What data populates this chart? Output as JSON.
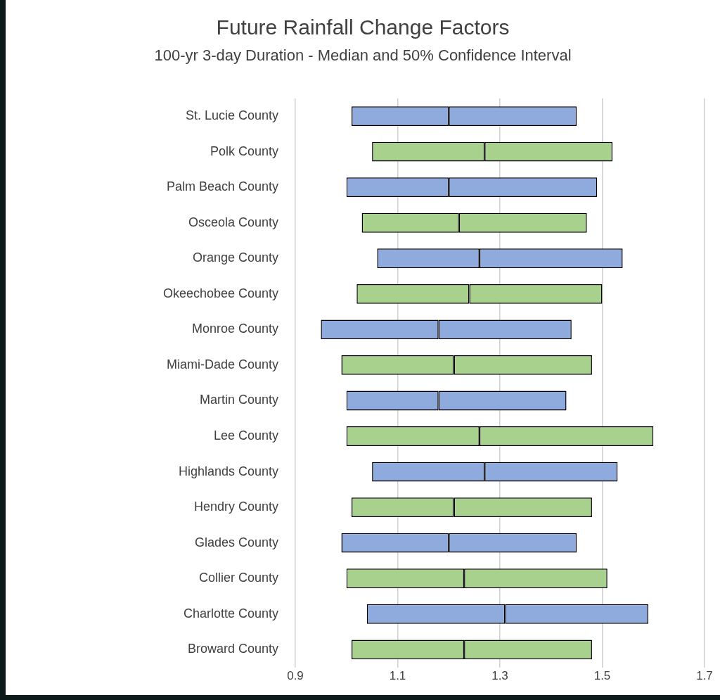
{
  "chart_data": {
    "type": "bar",
    "orientation": "horizontal",
    "title": "Future Rainfall Change Factors",
    "subtitle": "100-yr 3-day Duration - Median and 50% Confidence Interval",
    "categories": [
      "St. Lucie County",
      "Polk County",
      "Palm Beach County",
      "Osceola County",
      "Orange County",
      "Okeechobee County",
      "Monroe County",
      "Miami-Dade County",
      "Martin County",
      "Lee County",
      "Highlands County",
      "Hendry County",
      "Glades County",
      "Collier County",
      "Charlotte County",
      "Broward County"
    ],
    "series": [
      {
        "base": [
          1.01,
          1.05,
          1.0,
          1.03,
          1.06,
          1.02,
          0.95,
          0.99,
          1.0,
          1.0,
          1.05,
          1.01,
          0.99,
          1.0,
          1.04,
          1.01
        ],
        "colors": [
          "#8faadc",
          "#a9d18e",
          "#8faadc",
          "#a9d18e",
          "#8faadc",
          "#a9d18e",
          "#8faadc",
          "#a9d18e",
          "#8faadc",
          "#a9d18e",
          "#8faadc",
          "#a9d18e",
          "#8faadc",
          "#a9d18e",
          "#8faadc",
          "#a9d18e"
        ],
        "values": [
          0.19,
          0.22,
          0.2,
          0.19,
          0.2,
          0.22,
          0.23,
          0.22,
          0.18,
          0.26,
          0.22,
          0.2,
          0.21,
          0.23,
          0.27,
          0.22
        ]
      },
      {
        "base": [
          1.2,
          1.27,
          1.2,
          1.22,
          1.26,
          1.24,
          1.18,
          1.21,
          1.18,
          1.26,
          1.27,
          1.21,
          1.2,
          1.23,
          1.31,
          1.23
        ],
        "colors": [
          "#8faadc",
          "#a9d18e",
          "#8faadc",
          "#a9d18e",
          "#8faadc",
          "#a9d18e",
          "#8faadc",
          "#a9d18e",
          "#8faadc",
          "#a9d18e",
          "#8faadc",
          "#a9d18e",
          "#8faadc",
          "#a9d18e",
          "#8faadc",
          "#a9d18e"
        ],
        "values": [
          0.25,
          0.25,
          0.29,
          0.25,
          0.28,
          0.26,
          0.26,
          0.27,
          0.25,
          0.34,
          0.26,
          0.27,
          0.25,
          0.28,
          0.28,
          0.25
        ]
      }
    ],
    "xlim": [
      0.9,
      1.7
    ],
    "xticks": [
      0.9,
      1.1,
      1.3,
      1.5,
      1.7
    ],
    "grid": "x"
  }
}
